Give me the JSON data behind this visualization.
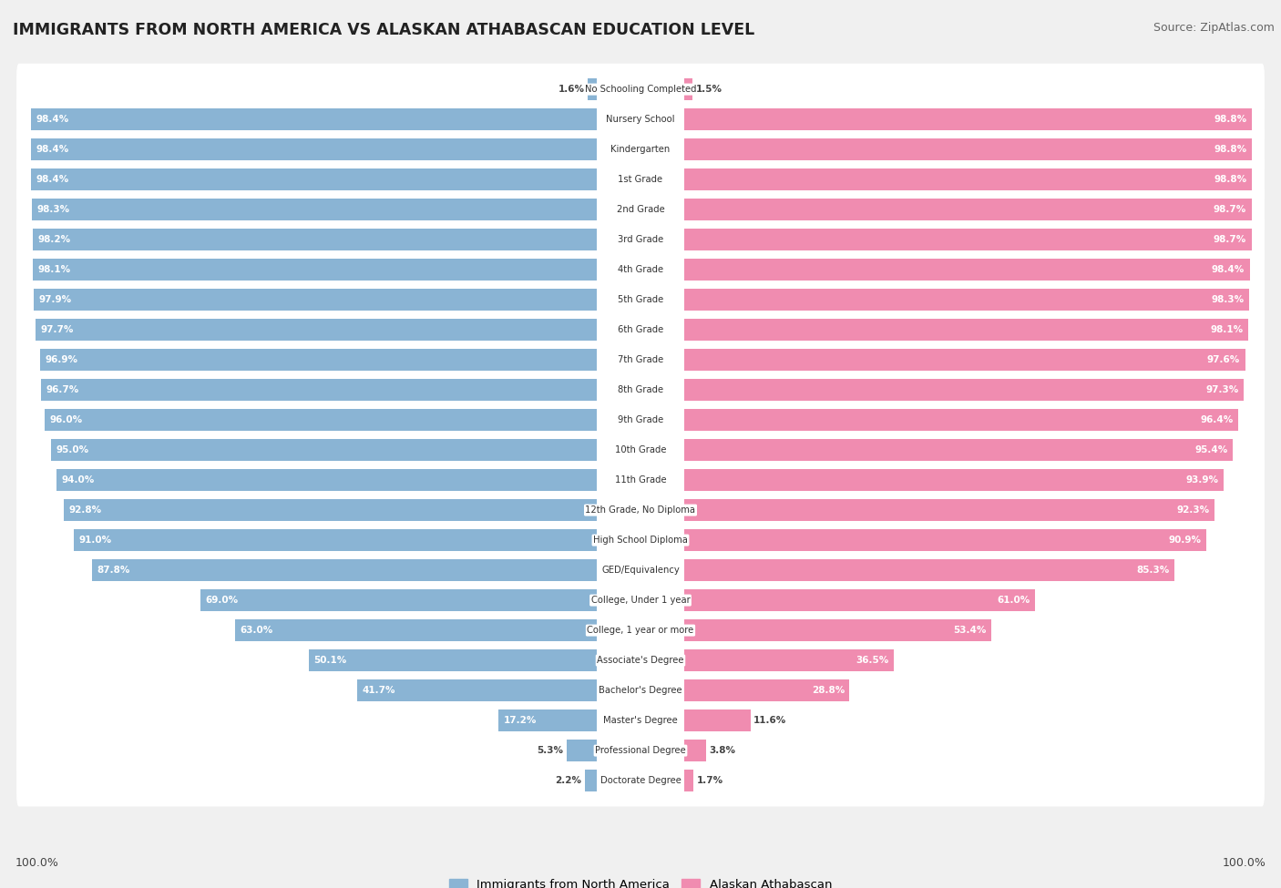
{
  "title": "IMMIGRANTS FROM NORTH AMERICA VS ALASKAN ATHABASCAN EDUCATION LEVEL",
  "source": "Source: ZipAtlas.com",
  "categories": [
    "No Schooling Completed",
    "Nursery School",
    "Kindergarten",
    "1st Grade",
    "2nd Grade",
    "3rd Grade",
    "4th Grade",
    "5th Grade",
    "6th Grade",
    "7th Grade",
    "8th Grade",
    "9th Grade",
    "10th Grade",
    "11th Grade",
    "12th Grade, No Diploma",
    "High School Diploma",
    "GED/Equivalency",
    "College, Under 1 year",
    "College, 1 year or more",
    "Associate's Degree",
    "Bachelor's Degree",
    "Master's Degree",
    "Professional Degree",
    "Doctorate Degree"
  ],
  "left_values": [
    1.6,
    98.4,
    98.4,
    98.4,
    98.3,
    98.2,
    98.1,
    97.9,
    97.7,
    96.9,
    96.7,
    96.0,
    95.0,
    94.0,
    92.8,
    91.0,
    87.8,
    69.0,
    63.0,
    50.1,
    41.7,
    17.2,
    5.3,
    2.2
  ],
  "right_values": [
    1.5,
    98.8,
    98.8,
    98.8,
    98.7,
    98.7,
    98.4,
    98.3,
    98.1,
    97.6,
    97.3,
    96.4,
    95.4,
    93.9,
    92.3,
    90.9,
    85.3,
    61.0,
    53.4,
    36.5,
    28.8,
    11.6,
    3.8,
    1.7
  ],
  "left_color": "#8ab4d4",
  "right_color": "#f08cb0",
  "background_color": "#f0f0f0",
  "row_bg_color": "#ffffff",
  "legend_left": "Immigrants from North America",
  "legend_right": "Alaskan Athabascan",
  "axis_label_left": "100.0%",
  "axis_label_right": "100.0%"
}
